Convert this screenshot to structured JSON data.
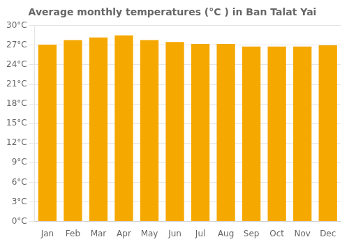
{
  "chart_data": {
    "type": "bar",
    "title": "Average monthly temperatures (°C ) in Ban Talat Yai",
    "categories": [
      "Jan",
      "Feb",
      "Mar",
      "Apr",
      "May",
      "Jun",
      "Jul",
      "Aug",
      "Sep",
      "Oct",
      "Nov",
      "Dec"
    ],
    "values": [
      27.1,
      27.8,
      28.2,
      28.5,
      27.8,
      27.5,
      27.2,
      27.2,
      26.8,
      26.8,
      26.8,
      27.0
    ],
    "color": "#F5A800",
    "ylim": [
      0,
      30
    ],
    "yticks": [
      {
        "value": 0,
        "label": "0°C"
      },
      {
        "value": 3,
        "label": "3°C"
      },
      {
        "value": 6,
        "label": "6°C"
      },
      {
        "value": 9,
        "label": "9°C"
      },
      {
        "value": 12,
        "label": "12°C"
      },
      {
        "value": 15,
        "label": "15°C"
      },
      {
        "value": 18,
        "label": "18°C"
      },
      {
        "value": 21,
        "label": "21°C"
      },
      {
        "value": 24,
        "label": "24°C"
      },
      {
        "value": 27,
        "label": "27°C"
      },
      {
        "value": 30,
        "label": "30°C"
      }
    ],
    "grid": true
  }
}
